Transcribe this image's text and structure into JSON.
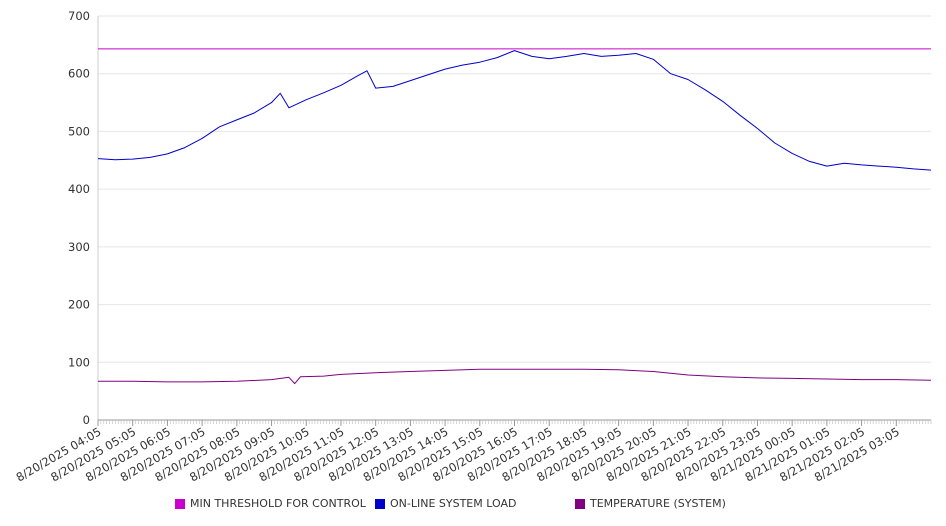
{
  "chart_data": {
    "type": "line",
    "title": "",
    "xlabel": "",
    "ylabel": "",
    "ylim": [
      0,
      700
    ],
    "y_ticks": [
      0,
      100,
      200,
      300,
      400,
      500,
      600,
      700
    ],
    "grid": "horizontal",
    "legend_position": "bottom",
    "x_tick_labels": [
      "8/20/2025 04:05",
      "8/20/2025 05:05",
      "8/20/2025 06:05",
      "8/20/2025 07:05",
      "8/20/2025 08:05",
      "8/20/2025 09:05",
      "8/20/2025 10:05",
      "8/20/2025 11:05",
      "8/20/2025 12:05",
      "8/20/2025 13:05",
      "8/20/2025 14:05",
      "8/20/2025 15:05",
      "8/20/2025 16:05",
      "8/20/2025 17:05",
      "8/20/2025 18:05",
      "8/20/2025 19:05",
      "8/20/2025 20:05",
      "8/20/2025 21:05",
      "8/20/2025 22:05",
      "8/20/2025 23:05",
      "8/21/2025 00:05",
      "8/21/2025 01:05",
      "8/21/2025 02:05",
      "8/21/2025 03:05"
    ],
    "x_end": "8/21/2025 04:05",
    "series": [
      {
        "name": "MIN THRESHOLD FOR CONTROL",
        "color": "#cc00cc",
        "x": [
          "8/20/2025 04:05",
          "8/21/2025 04:05"
        ],
        "values": [
          643,
          643
        ]
      },
      {
        "name": "ON-LINE SYSTEM LOAD",
        "color": "#0000cc",
        "x": [
          "8/20/2025 04:05",
          "8/20/2025 04:35",
          "8/20/2025 05:05",
          "8/20/2025 05:35",
          "8/20/2025 06:05",
          "8/20/2025 06:35",
          "8/20/2025 07:05",
          "8/20/2025 07:35",
          "8/20/2025 08:05",
          "8/20/2025 08:35",
          "8/20/2025 09:05",
          "8/20/2025 09:20",
          "8/20/2025 09:35",
          "8/20/2025 10:05",
          "8/20/2025 10:35",
          "8/20/2025 11:05",
          "8/20/2025 11:35",
          "8/20/2025 11:50",
          "8/20/2025 12:05",
          "8/20/2025 12:35",
          "8/20/2025 13:05",
          "8/20/2025 13:35",
          "8/20/2025 14:05",
          "8/20/2025 14:35",
          "8/20/2025 15:05",
          "8/20/2025 15:35",
          "8/20/2025 16:05",
          "8/20/2025 16:35",
          "8/20/2025 17:05",
          "8/20/2025 17:35",
          "8/20/2025 18:05",
          "8/20/2025 18:35",
          "8/20/2025 19:05",
          "8/20/2025 19:35",
          "8/20/2025 20:05",
          "8/20/2025 20:35",
          "8/20/2025 21:05",
          "8/20/2025 21:35",
          "8/20/2025 22:05",
          "8/20/2025 22:35",
          "8/20/2025 23:05",
          "8/20/2025 23:35",
          "8/21/2025 00:05",
          "8/21/2025 00:35",
          "8/21/2025 01:05",
          "8/21/2025 01:35",
          "8/21/2025 02:05",
          "8/21/2025 02:35",
          "8/21/2025 03:05",
          "8/21/2025 03:35",
          "8/21/2025 04:05"
        ],
        "values": [
          453,
          451,
          452,
          455,
          461,
          472,
          488,
          508,
          520,
          532,
          550,
          566,
          541,
          555,
          567,
          580,
          597,
          605,
          575,
          578,
          588,
          598,
          608,
          615,
          620,
          628,
          640,
          630,
          626,
          630,
          635,
          630,
          632,
          635,
          625,
          600,
          590,
          572,
          552,
          528,
          505,
          480,
          462,
          448,
          440,
          445,
          442,
          440,
          438,
          435,
          433
        ]
      },
      {
        "name": "TEMPERATURE (SYSTEM)",
        "color": "#800080",
        "x": [
          "8/20/2025 04:05",
          "8/20/2025 05:05",
          "8/20/2025 06:05",
          "8/20/2025 07:05",
          "8/20/2025 08:05",
          "8/20/2025 09:05",
          "8/20/2025 09:35",
          "8/20/2025 09:45",
          "8/20/2025 09:55",
          "8/20/2025 10:35",
          "8/20/2025 11:05",
          "8/20/2025 12:05",
          "8/20/2025 13:05",
          "8/20/2025 14:05",
          "8/20/2025 15:05",
          "8/20/2025 16:05",
          "8/20/2025 17:05",
          "8/20/2025 18:05",
          "8/20/2025 19:05",
          "8/20/2025 20:05",
          "8/20/2025 21:05",
          "8/20/2025 22:05",
          "8/20/2025 23:05",
          "8/21/2025 00:05",
          "8/21/2025 01:05",
          "8/21/2025 02:05",
          "8/21/2025 03:05",
          "8/21/2025 04:05"
        ],
        "values": [
          67,
          67,
          66,
          66,
          67,
          70,
          74,
          63,
          75,
          76,
          79,
          82,
          84,
          86,
          88,
          88,
          88,
          88,
          87,
          84,
          78,
          75,
          73,
          72,
          71,
          70,
          70,
          69
        ]
      }
    ]
  }
}
